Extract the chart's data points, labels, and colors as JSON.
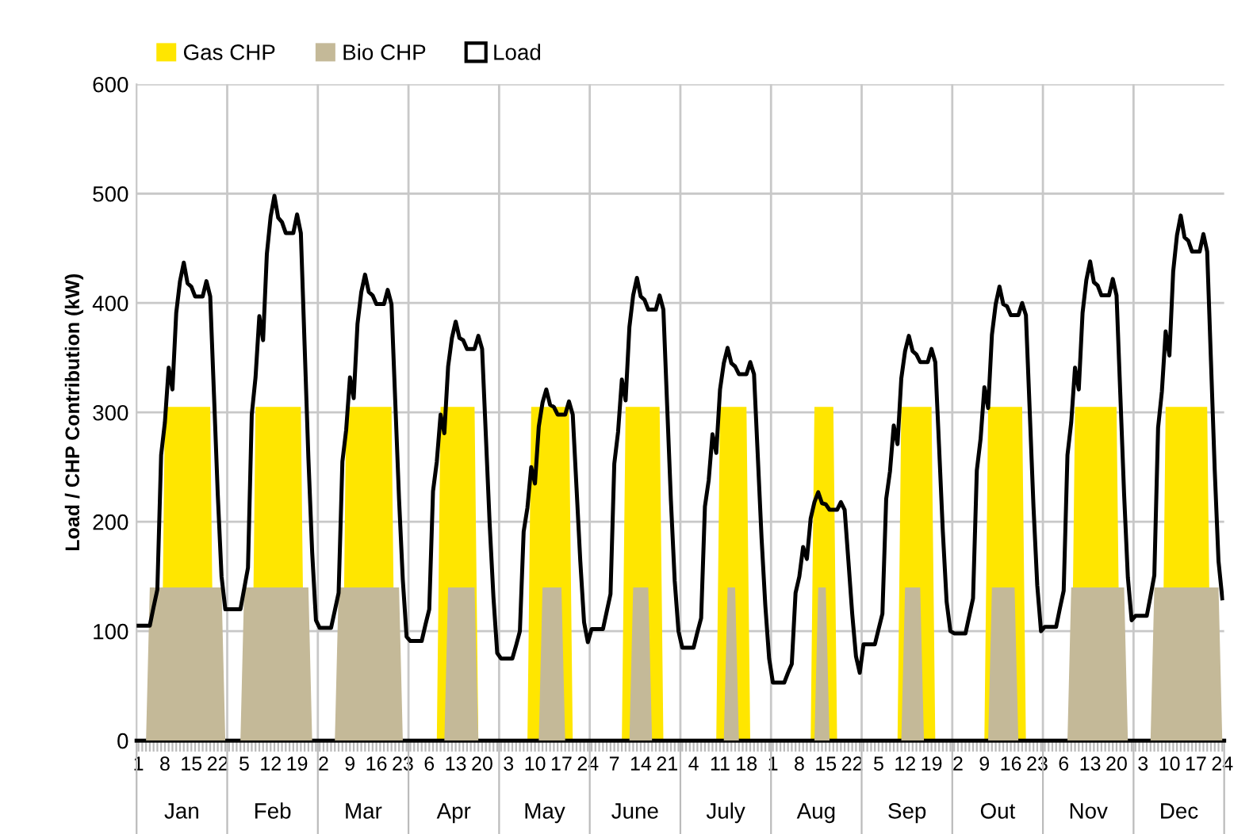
{
  "chart_data": {
    "type": "area",
    "ylabel": "Load / CHP Contribution (kW)",
    "ylim": [
      0,
      600
    ],
    "yticks": [
      0,
      100,
      200,
      300,
      400,
      500,
      600
    ],
    "grid": true,
    "legend": "top",
    "annotations": [
      "Jan",
      "Feb",
      "Mar",
      "Apr",
      "May",
      "June",
      "July",
      "Aug",
      "Sep",
      "Out",
      "Nov",
      "Dec"
    ],
    "categories": [
      "1",
      null,
      null,
      null,
      null,
      null,
      null,
      "8",
      null,
      null,
      null,
      null,
      null,
      null,
      "15",
      null,
      null,
      null,
      null,
      null,
      null,
      "22",
      null,
      null,
      null,
      null,
      null,
      null,
      "5",
      null,
      null,
      null,
      null,
      null,
      null,
      "12",
      null,
      null,
      null,
      null,
      null,
      null,
      "19",
      null,
      null,
      null,
      null,
      null,
      null,
      "2",
      null,
      null,
      null,
      null,
      null,
      null,
      "9",
      null,
      null,
      null,
      null,
      null,
      null,
      "16",
      null,
      null,
      null,
      null,
      null,
      null,
      "23",
      null,
      null,
      null,
      null,
      null,
      null,
      "6",
      null,
      null,
      null,
      null,
      null,
      null,
      "13",
      null,
      null,
      null,
      null,
      null,
      null,
      "20",
      null,
      null,
      null,
      null,
      null,
      null,
      "3",
      null,
      null,
      null,
      null,
      null,
      null,
      "10",
      null,
      null,
      null,
      null,
      null,
      null,
      "17",
      null,
      null,
      null,
      null,
      null,
      null,
      "24",
      null,
      null,
      null,
      null,
      null,
      null,
      "7",
      null,
      null,
      null,
      null,
      null,
      null,
      "14",
      null,
      null,
      null,
      null,
      null,
      null,
      "21",
      null,
      null,
      null,
      null,
      null,
      null,
      "4",
      null,
      null,
      null,
      null,
      null,
      null,
      "11",
      null,
      null,
      null,
      null,
      null,
      null,
      "18",
      null,
      null,
      null,
      null,
      null,
      null,
      "1",
      null,
      null,
      null,
      null,
      null,
      null,
      "8",
      null,
      null,
      null,
      null,
      null,
      null,
      "15",
      null,
      null,
      null,
      null,
      null,
      null,
      "22",
      null,
      null,
      null,
      null,
      null,
      null,
      "5",
      null,
      null,
      null,
      null,
      null,
      null,
      "12",
      null,
      null,
      null,
      null,
      null,
      null,
      "19",
      null,
      null,
      null,
      null,
      null,
      null,
      "2",
      null,
      null,
      null,
      null,
      null,
      null,
      "9",
      null,
      null,
      null,
      null,
      null,
      null,
      "16",
      null,
      null,
      null,
      null,
      null,
      null,
      "23",
      null,
      null,
      null,
      null,
      null,
      null,
      "6",
      null,
      null,
      null,
      null,
      null,
      null,
      "13",
      null,
      null,
      null,
      null,
      null,
      null,
      "20",
      null,
      null,
      null,
      null,
      null,
      null,
      "3",
      null,
      null,
      null,
      null,
      null,
      null,
      "10",
      null,
      null,
      null,
      null,
      null,
      null,
      "17",
      null,
      null,
      null,
      null,
      null,
      null,
      "24"
    ],
    "series": [
      {
        "name": "Gas CHP",
        "color": "#ffe600",
        "values": [
          0,
          0,
          0,
          0,
          0,
          0,
          0,
          305,
          305,
          305,
          305,
          305,
          305,
          305,
          305,
          305,
          305,
          305,
          305,
          305,
          0,
          0,
          0,
          0,
          0,
          0,
          0,
          0,
          0,
          0,
          0,
          305,
          305,
          305,
          305,
          305,
          305,
          305,
          305,
          305,
          305,
          305,
          305,
          305,
          0,
          0,
          0,
          0,
          0,
          0,
          0,
          0,
          0,
          0,
          0,
          305,
          305,
          305,
          305,
          305,
          305,
          305,
          305,
          305,
          305,
          305,
          305,
          305,
          0,
          0,
          0,
          0,
          0,
          0,
          0,
          0,
          0,
          0,
          0,
          0,
          305,
          305,
          305,
          305,
          305,
          305,
          305,
          305,
          305,
          305,
          0,
          0,
          0,
          0,
          0,
          0,
          0,
          0,
          0,
          0,
          0,
          0,
          0,
          0,
          305,
          305,
          305,
          305,
          305,
          305,
          305,
          305,
          305,
          305,
          305,
          0,
          0,
          0,
          0,
          0,
          0,
          0,
          0,
          0,
          0,
          0,
          0,
          0,
          0,
          305,
          305,
          305,
          305,
          305,
          305,
          305,
          305,
          305,
          305,
          0,
          0,
          0,
          0,
          0,
          0,
          0,
          0,
          0,
          0,
          0,
          0,
          0,
          0,
          0,
          305,
          305,
          305,
          305,
          305,
          305,
          305,
          305,
          0,
          0,
          0,
          0,
          0,
          0,
          0,
          0,
          0,
          0,
          0,
          0,
          0,
          0,
          0,
          0,
          0,
          305,
          305,
          305,
          305,
          305,
          305,
          0,
          0,
          0,
          0,
          0,
          0,
          0,
          0,
          0,
          0,
          0,
          0,
          0,
          0,
          0,
          0,
          0,
          305,
          305,
          305,
          305,
          305,
          305,
          305,
          305,
          305,
          0,
          0,
          0,
          0,
          0,
          0,
          0,
          0,
          0,
          0,
          0,
          0,
          0,
          0,
          305,
          305,
          305,
          305,
          305,
          305,
          305,
          305,
          305,
          305,
          0,
          0,
          0,
          0,
          0,
          0,
          0,
          0,
          0,
          0,
          0,
          0,
          0,
          305,
          305,
          305,
          305,
          305,
          305,
          305,
          305,
          305,
          305,
          305,
          305,
          0,
          0,
          0,
          0,
          0,
          0,
          0,
          0,
          0,
          0,
          0,
          0,
          305,
          305,
          305,
          305,
          305,
          305,
          305,
          305,
          305,
          305,
          305,
          305,
          0,
          0,
          0,
          0
        ]
      },
      {
        "name": "Bio CHP",
        "color": "#c4b998",
        "values": [
          0,
          0,
          0,
          140,
          140,
          140,
          140,
          140,
          140,
          140,
          140,
          140,
          140,
          140,
          140,
          140,
          140,
          140,
          140,
          140,
          140,
          140,
          140,
          0,
          0,
          0,
          0,
          0,
          140,
          140,
          140,
          140,
          140,
          140,
          140,
          140,
          140,
          140,
          140,
          140,
          140,
          140,
          140,
          140,
          140,
          140,
          0,
          0,
          0,
          0,
          0,
          0,
          0,
          140,
          140,
          140,
          140,
          140,
          140,
          140,
          140,
          140,
          140,
          140,
          140,
          140,
          140,
          140,
          140,
          140,
          0,
          0,
          0,
          0,
          0,
          0,
          0,
          0,
          0,
          0,
          0,
          0,
          140,
          140,
          140,
          140,
          140,
          140,
          140,
          140,
          0,
          0,
          0,
          0,
          0,
          0,
          0,
          0,
          0,
          0,
          0,
          0,
          0,
          0,
          0,
          0,
          0,
          140,
          140,
          140,
          140,
          140,
          140,
          0,
          0,
          0,
          0,
          0,
          0,
          0,
          0,
          0,
          0,
          0,
          0,
          0,
          0,
          0,
          0,
          0,
          0,
          140,
          140,
          140,
          140,
          140,
          0,
          0,
          0,
          0,
          0,
          0,
          0,
          0,
          0,
          0,
          0,
          0,
          0,
          0,
          0,
          0,
          0,
          0,
          0,
          0,
          140,
          140,
          140,
          0,
          0,
          0,
          0,
          0,
          0,
          0,
          0,
          0,
          0,
          0,
          0,
          0,
          0,
          0,
          0,
          0,
          0,
          0,
          0,
          0,
          140,
          140,
          140,
          0,
          0,
          0,
          0,
          0,
          0,
          0,
          0,
          0,
          0,
          0,
          0,
          0,
          0,
          0,
          0,
          0,
          0,
          0,
          0,
          140,
          140,
          140,
          140,
          140,
          0,
          0,
          0,
          0,
          0,
          0,
          0,
          0,
          0,
          0,
          0,
          0,
          0,
          0,
          0,
          0,
          0,
          0,
          140,
          140,
          140,
          140,
          140,
          140,
          140,
          0,
          0,
          0,
          0,
          0,
          0,
          0,
          0,
          0,
          0,
          0,
          0,
          0,
          0,
          140,
          140,
          140,
          140,
          140,
          140,
          140,
          140,
          140,
          140,
          140,
          140,
          140,
          140,
          140,
          0,
          0,
          0,
          0,
          0,
          0,
          0,
          140,
          140,
          140,
          140,
          140,
          140,
          140,
          140,
          140,
          140,
          140,
          140,
          140,
          140,
          140,
          140,
          140,
          140,
          0
        ]
      },
      {
        "name": "Load",
        "type": "line",
        "color": "#000000",
        "values": [
          105,
          105,
          105,
          105,
          122,
          138,
          261,
          291,
          341,
          321,
          391,
          420,
          437,
          418,
          415,
          406,
          406,
          406,
          420,
          406,
          316,
          225,
          150,
          120,
          120,
          120,
          120,
          120,
          139,
          158,
          298,
          332,
          388,
          366,
          445,
          479,
          498,
          478,
          474,
          464,
          464,
          464,
          481,
          464,
          361,
          258,
          172,
          110,
          103,
          103,
          103,
          103,
          119,
          135,
          255,
          284,
          332,
          313,
          381,
          410,
          426,
          410,
          407,
          399,
          399,
          399,
          412,
          399,
          310,
          221,
          147,
          95,
          91,
          91,
          91,
          91,
          106,
          120,
          228,
          255,
          298,
          281,
          342,
          368,
          383,
          368,
          366,
          358,
          358,
          358,
          370,
          358,
          278,
          198,
          131,
          80,
          75,
          75,
          75,
          75,
          87,
          100,
          191,
          213,
          250,
          235,
          287,
          309,
          321,
          307,
          305,
          298,
          298,
          298,
          310,
          298,
          231,
          164,
          108,
          90,
          102,
          102,
          102,
          102,
          118,
          134,
          253,
          282,
          330,
          311,
          378,
          407,
          423,
          406,
          403,
          394,
          394,
          394,
          407,
          394,
          306,
          219,
          146,
          100,
          85,
          85,
          85,
          85,
          99,
          112,
          214,
          238,
          280,
          263,
          321,
          345,
          359,
          345,
          342,
          335,
          335,
          335,
          346,
          335,
          260,
          185,
          123,
          75,
          53,
          53,
          53,
          53,
          62,
          70,
          135,
          150,
          177,
          166,
          203,
          218,
          227,
          217,
          216,
          211,
          211,
          211,
          218,
          211,
          164,
          116,
          77,
          62,
          88,
          88,
          88,
          88,
          102,
          116,
          221,
          246,
          288,
          271,
          331,
          356,
          370,
          356,
          353,
          346,
          346,
          346,
          358,
          346,
          269,
          191,
          127,
          100,
          98,
          98,
          98,
          98,
          114,
          130,
          247,
          276,
          323,
          304,
          371,
          399,
          415,
          399,
          397,
          389,
          389,
          389,
          400,
          389,
          302,
          214,
          142,
          100,
          104,
          104,
          104,
          104,
          121,
          137,
          261,
          291,
          341,
          321,
          391,
          421,
          438,
          419,
          416,
          407,
          407,
          407,
          422,
          407,
          316,
          225,
          149,
          110,
          114,
          114,
          114,
          114,
          132,
          151,
          286,
          319,
          374,
          352,
          429,
          462,
          480,
          460,
          457,
          447,
          447,
          447,
          463,
          447,
          347,
          247,
          164,
          130
        ]
      }
    ]
  }
}
